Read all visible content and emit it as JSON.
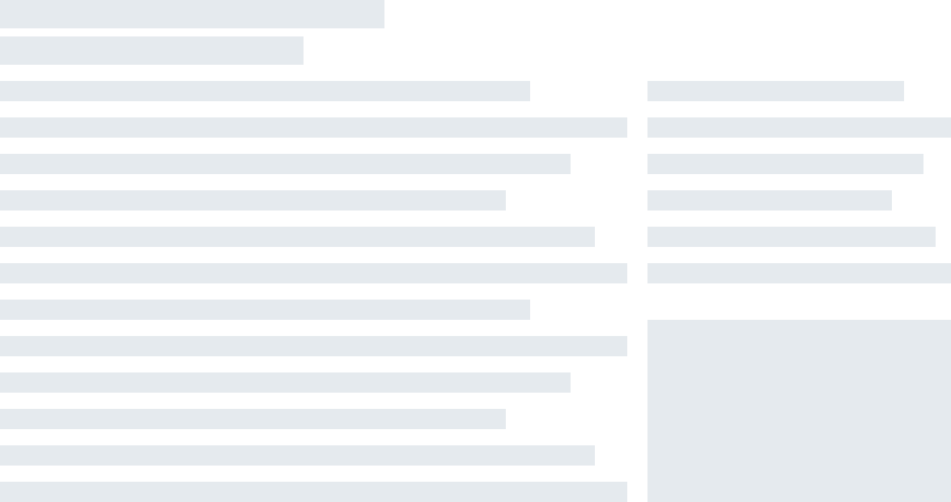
{
  "state": "loading",
  "colors": {
    "background": "#ffffff",
    "skeleton": "#e5eaee"
  }
}
